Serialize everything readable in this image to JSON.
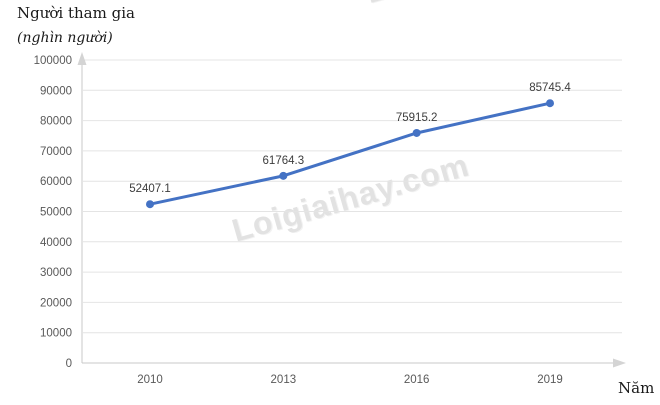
{
  "header": {
    "title": "Người tham gia",
    "subtitle": "(nghìn người)"
  },
  "watermark": {
    "text": "Loigiaihay.com"
  },
  "chart_data": {
    "type": "line",
    "title": "Người tham gia (nghìn người)",
    "categories": [
      "2010",
      "2013",
      "2016",
      "2019"
    ],
    "series": [
      {
        "name": "Người tham gia",
        "values": [
          52407.1,
          61764.3,
          75915.2,
          85745.4
        ]
      }
    ],
    "data_labels": [
      "52407.1",
      "61764.3",
      "75915.2",
      "85745.4"
    ],
    "xlabel": "Năm",
    "ylabel": "nghìn người",
    "ylim": [
      0,
      100000
    ],
    "y_ticks": [
      0,
      10000,
      20000,
      30000,
      40000,
      50000,
      60000,
      70000,
      80000,
      90000,
      100000
    ],
    "grid": true,
    "legend": false
  },
  "colors": {
    "line": "#4472C4",
    "grid": "#e4e4e4",
    "axis": "#c9c9c9",
    "arrow": "#d4d4d4",
    "tick_text": "#595959",
    "data_label_text": "#3d3d3d",
    "watermark": "#e2e2e2"
  }
}
